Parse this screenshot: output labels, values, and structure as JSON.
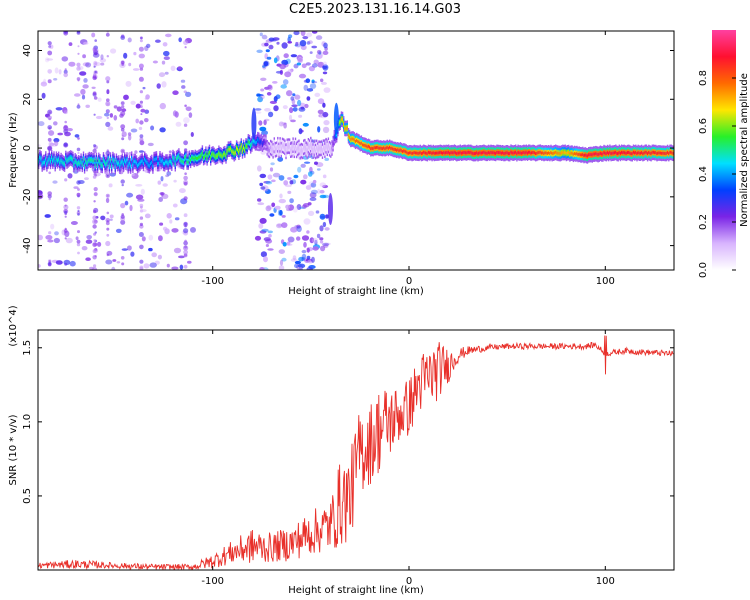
{
  "title": "C2E5.2023.131.16.14.G03",
  "colors": {
    "snr_line": "#e8302a",
    "speckle": "#8a3cf0",
    "colormap": [
      "#ffffff",
      "#d8b4fe",
      "#7a24e6",
      "#0040ff",
      "#00e0ff",
      "#28f028",
      "#ffe600",
      "#ff6a00",
      "#ff1030",
      "#ff40a0"
    ]
  },
  "chart_data": [
    {
      "type": "heatmap",
      "title": "C2E5.2023.131.16.14.G03",
      "xlabel": "Height of straight line (km)",
      "ylabel": "Frequency (Hz)",
      "xlim": [
        -189,
        135
      ],
      "ylim": [
        -50,
        48
      ],
      "xticks": [
        -100,
        0,
        100
      ],
      "yticks": [
        -40,
        -20,
        0,
        20,
        40
      ],
      "grid": false,
      "ridge": {
        "description_points_x": [
          -189,
          -160,
          -130,
          -110,
          -95,
          -85,
          -78,
          -70,
          -40,
          -35,
          -30,
          -20,
          -10,
          0,
          20,
          60,
          80,
          90,
          100,
          135
        ],
        "freq_hz": [
          -5,
          -6,
          -6,
          -4,
          -2,
          0,
          3,
          0,
          0,
          12,
          4,
          0,
          0,
          -2,
          -2,
          -2,
          -2,
          -3,
          -2,
          -2
        ],
        "peak_amplitude": [
          0.45,
          0.5,
          0.4,
          0.55,
          0.6,
          0.65,
          0.4,
          0.1,
          0.1,
          0.7,
          0.75,
          0.85,
          0.85,
          0.85,
          0.9,
          0.9,
          0.7,
          0.9,
          0.9,
          0.85
        ]
      },
      "colorbar": {
        "label": "Normalized spectral amplitude",
        "range": [
          0,
          1
        ],
        "ticks": [
          "0.0",
          "0.2",
          "0.4",
          "0.6",
          "0.8"
        ],
        "tick_values": [
          0,
          0.2,
          0.4,
          0.6,
          0.8
        ]
      }
    },
    {
      "type": "line",
      "xlabel": "Height of straight line (km)",
      "ylabel": "SNR (10 * v/v)",
      "multiplier": "(x10^4)",
      "xlim": [
        -189,
        135
      ],
      "ylim": [
        0,
        1.62
      ],
      "xticks": [
        -100,
        0,
        100
      ],
      "yticks": [
        "0.5",
        "1.0",
        "1.5"
      ],
      "ytick_values": [
        0.5,
        1.0,
        1.5
      ],
      "grid": false,
      "series": [
        {
          "color": "#e8302a",
          "x": [
            -189,
            -170,
            -150,
            -130,
            -110,
            -100,
            -90,
            -80,
            -70,
            -60,
            -50,
            -40,
            -35,
            -30,
            -25,
            -20,
            -15,
            -10,
            -5,
            0,
            5,
            10,
            15,
            20,
            25,
            30,
            40,
            50,
            60,
            70,
            80,
            90,
            95,
            100,
            105,
            110,
            120,
            135
          ],
          "values": [
            0.03,
            0.04,
            0.03,
            0.02,
            0.02,
            0.06,
            0.12,
            0.16,
            0.15,
            0.18,
            0.25,
            0.3,
            0.45,
            0.5,
            0.8,
            0.85,
            0.95,
            1.0,
            1.05,
            1.1,
            1.25,
            1.3,
            1.35,
            1.38,
            1.45,
            1.48,
            1.5,
            1.51,
            1.51,
            1.51,
            1.51,
            1.51,
            1.52,
            1.46,
            1.47,
            1.48,
            1.47,
            1.46
          ],
          "noise": [
            0.02,
            0.03,
            0.02,
            0.02,
            0.02,
            0.05,
            0.08,
            0.12,
            0.1,
            0.12,
            0.15,
            0.18,
            0.3,
            0.3,
            0.3,
            0.28,
            0.3,
            0.25,
            0.2,
            0.2,
            0.2,
            0.22,
            0.2,
            0.12,
            0.05,
            0.03,
            0.02,
            0.02,
            0.02,
            0.02,
            0.02,
            0.02,
            0.02,
            0.02,
            0.02,
            0.02,
            0.02,
            0.02
          ]
        }
      ]
    }
  ]
}
